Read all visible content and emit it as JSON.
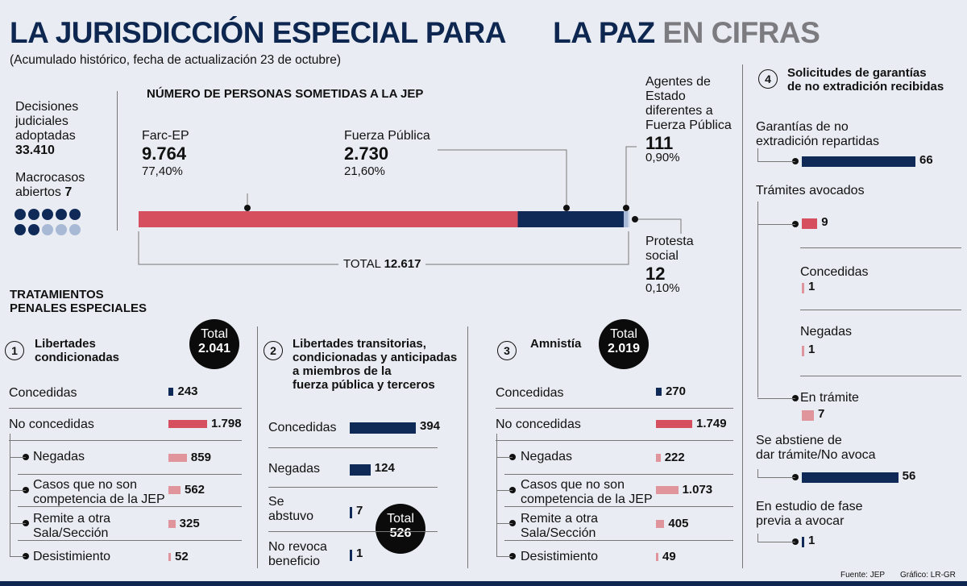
{
  "title": {
    "part1": "LA JURISDICCIÓN ESPECIAL PARA",
    "part2": "LA PAZ",
    "part3": "EN CIFRAS"
  },
  "subtitle": "(Acumulado histórico, fecha de actualización 23 de octubre)",
  "decisions": {
    "label_l1": "Decisiones",
    "label_l2": "judiciales",
    "label_l3": "adoptadas",
    "value": "33.410"
  },
  "macrocasos": {
    "label_l1": "Macrocasos",
    "label_l2": "abiertos",
    "value": "7",
    "filled": 7,
    "total": 10
  },
  "personas_title": "NÚMERO DE PERSONAS SOMETIDAS A LA JEP",
  "personas": {
    "farc": {
      "label": "Farc-EP",
      "value": "9.764",
      "pct": "77,40%"
    },
    "fuerza": {
      "label": "Fuerza Pública",
      "value": "2.730",
      "pct": "21,60%"
    },
    "agentes": {
      "label_l1": "Agentes de",
      "label_l2": "Estado",
      "label_l3": "diferentes a",
      "label_l4": "Fuerza Pública",
      "value": "111",
      "pct": "0,90%"
    },
    "protesta": {
      "label_l1": "Protesta",
      "label_l2": "social",
      "value": "12",
      "pct": "0,10%"
    },
    "total_label": "TOTAL",
    "total_value": "12.617"
  },
  "tratamientos": {
    "l1": "TRATAMIENTOS",
    "l2": "PENALES ESPECIALES"
  },
  "section1": {
    "num": "1",
    "title_l1": "Libertades",
    "title_l2": "condicionadas",
    "total_label": "Total",
    "total_value": "2.041",
    "rows": [
      {
        "label": "Concedidas",
        "value": "243"
      },
      {
        "label": "No concedidas",
        "value": "1.798"
      },
      {
        "label": "Negadas",
        "value": "859"
      },
      {
        "label_l1": "Casos que no son",
        "label_l2": "competencia de la JEP",
        "value": "562"
      },
      {
        "label_l1": "Remite a otra",
        "label_l2": "Sala/Sección",
        "value": "325"
      },
      {
        "label": "Desistimiento",
        "value": "52"
      }
    ]
  },
  "section2": {
    "num": "2",
    "title_l1": "Libertades transitorias,",
    "title_l2": "condicionadas y anticipadas",
    "title_l3": "a miembros de la",
    "title_l4": "fuerza pública y terceros",
    "total_label": "Total",
    "total_value": "526",
    "rows": [
      {
        "label": "Concedidas",
        "value": "394"
      },
      {
        "label": "Negadas",
        "value": "124"
      },
      {
        "label_l1": "Se",
        "label_l2": "abstuvo",
        "value": "7"
      },
      {
        "label_l1": "No revoca",
        "label_l2": "beneficio",
        "value": "1"
      }
    ]
  },
  "section3": {
    "num": "3",
    "title": "Amnistía",
    "total_label": "Total",
    "total_value": "2.019",
    "rows": [
      {
        "label": "Concedidas",
        "value": "270"
      },
      {
        "label": "No concedidas",
        "value": "1.749"
      },
      {
        "label": "Negadas",
        "value": "222"
      },
      {
        "label_l1": "Casos que no son",
        "label_l2": "competencia de la JEP",
        "value": "1.073"
      },
      {
        "label_l1": "Remite a otra",
        "label_l2": "Sala/Sección",
        "value": "405"
      },
      {
        "label": "Desistimiento",
        "value": "49"
      }
    ]
  },
  "section4": {
    "num": "4",
    "title_l1": "Solicitudes de garantías",
    "title_l2": "de no extradición recibidas",
    "rows": [
      {
        "label_l1": "Garantías de no",
        "label_l2": "extradición repartidas",
        "value": "66"
      },
      {
        "label": "Trámites avocados",
        "value": "9"
      },
      {
        "label": "Concedidas",
        "value": "1"
      },
      {
        "label": "Negadas",
        "value": "1"
      },
      {
        "label": "En trámite",
        "value": "7"
      },
      {
        "label_l1": "Se abstiene de",
        "label_l2": "dar trámite/No avoca",
        "value": "56"
      },
      {
        "label_l1": "En estudio de fase",
        "label_l2": "previa a avocar",
        "value": "1"
      }
    ]
  },
  "footer": {
    "source": "Fuente: JEP",
    "credit": "Gráfico: LR-GR"
  },
  "colors": {
    "navy": "#0f2a57",
    "red": "#d64f5f",
    "pink": "#e0959c",
    "lightblue": "#a8b9d6"
  },
  "chart_data": [
    {
      "type": "bar",
      "title": "NÚMERO DE PERSONAS SOMETIDAS A LA JEP",
      "stacked": true,
      "categories": [
        "Farc-EP",
        "Fuerza Pública",
        "Agentes de Estado diferentes a Fuerza Pública",
        "Protesta social"
      ],
      "values": [
        9764,
        2730,
        111,
        12
      ],
      "percent": [
        77.4,
        21.6,
        0.9,
        0.1
      ],
      "total": 12617
    },
    {
      "type": "bar",
      "title": "Libertades condicionadas",
      "categories": [
        "Concedidas",
        "No concedidas",
        "Negadas",
        "Casos que no son competencia de la JEP",
        "Remite a otra Sala/Sección",
        "Desistimiento"
      ],
      "values": [
        243,
        1798,
        859,
        562,
        325,
        52
      ],
      "total": 2041
    },
    {
      "type": "bar",
      "title": "Libertades transitorias, condicionadas y anticipadas a miembros de la fuerza pública y terceros",
      "categories": [
        "Concedidas",
        "Negadas",
        "Se abstuvo",
        "No revoca beneficio"
      ],
      "values": [
        394,
        124,
        7,
        1
      ],
      "total": 526
    },
    {
      "type": "bar",
      "title": "Amnistía",
      "categories": [
        "Concedidas",
        "No concedidas",
        "Negadas",
        "Casos que no son competencia de la JEP",
        "Remite a otra Sala/Sección",
        "Desistimiento"
      ],
      "values": [
        270,
        1749,
        222,
        1073,
        405,
        49
      ],
      "total": 2019
    },
    {
      "type": "bar",
      "title": "Solicitudes de garantías de no extradición recibidas",
      "categories": [
        "Garantías de no extradición repartidas",
        "Trámites avocados",
        "Concedidas",
        "Negadas",
        "En trámite",
        "Se abstiene de dar trámite/No avoca",
        "En estudio de fase previa a avocar"
      ],
      "values": [
        66,
        9,
        1,
        1,
        7,
        56,
        1
      ]
    }
  ]
}
